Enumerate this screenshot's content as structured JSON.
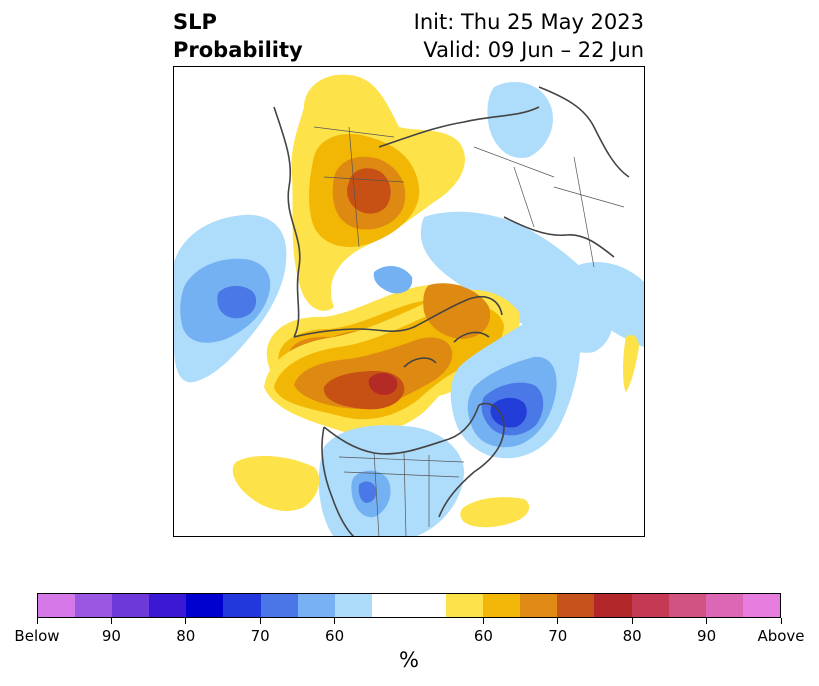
{
  "title": {
    "left": "SLP\nProbability",
    "right": "Init: Thu 25 May 2023\nValid: 09 Jun – 22 Jun"
  },
  "map": {
    "variable": "SLP",
    "field": "Probability",
    "colors": {
      "below_50": "#aedcfb",
      "below_60": "#74b1f2",
      "below_70": "#4a78e6",
      "below_80": "#233dd8",
      "above_50": "#fde24a",
      "above_60": "#f2b705",
      "above_70": "#de8912",
      "above_80": "#c75115",
      "above_90": "#b42a25"
    }
  },
  "colorbar": {
    "colors": [
      "#d578e8",
      "#9a58e2",
      "#6d3ad9",
      "#3a18d4",
      "#0000cf",
      "#2238dc",
      "#4b76e8",
      "#79b2f4",
      "#addcfb",
      "#ffffff",
      "#ffffff",
      "#fde24c",
      "#f3b70a",
      "#df8a14",
      "#c6531b",
      "#b1272a",
      "#c43a55",
      "#d15381",
      "#dc68b5",
      "#e87de0"
    ],
    "tick_labels": [
      "Below",
      "90",
      "80",
      "70",
      "60",
      "60",
      "70",
      "80",
      "90",
      "Above"
    ],
    "unit": "%"
  }
}
